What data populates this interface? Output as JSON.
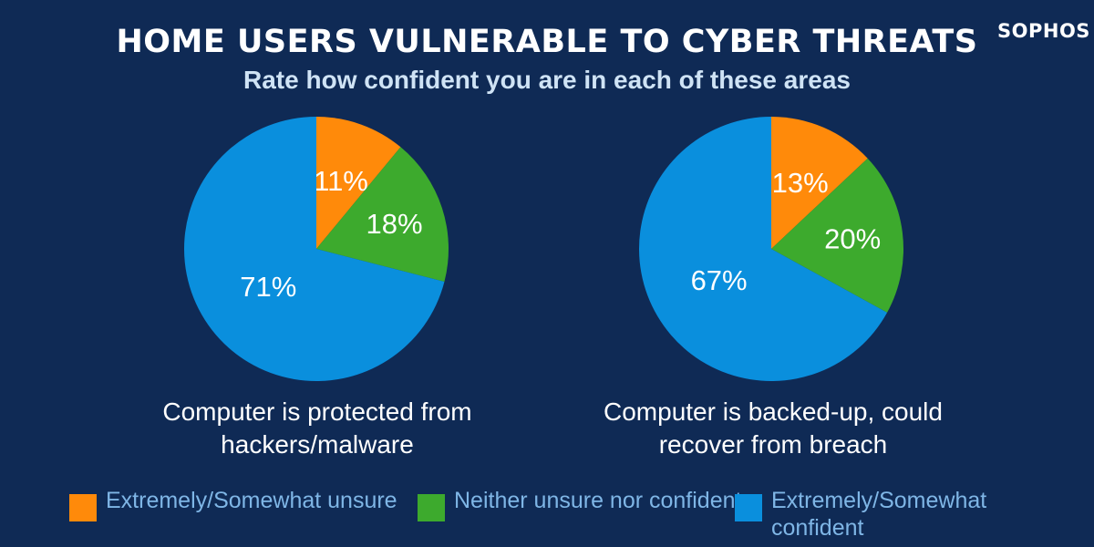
{
  "title": "HOME USERS VULNERABLE TO CYBER THREATS",
  "subtitle": "Rate how confident you are in each of these areas",
  "logo": "SOPHOS",
  "colors": {
    "unsure": "#ff8a0a",
    "neither": "#3daa2d",
    "confident": "#0a8fdd",
    "background": "#0f2a55"
  },
  "legend": [
    {
      "label": "Extremely/Somewhat unsure",
      "color": "#ff8a0a"
    },
    {
      "label": "Neither unsure nor confident",
      "color": "#3daa2d"
    },
    {
      "label": "Extremely/Somewhat confident",
      "color": "#0a8fdd"
    }
  ],
  "chart_data": [
    {
      "type": "pie",
      "caption": "Computer is protected from hackers/malware",
      "slices": [
        {
          "label": "Extremely/Somewhat unsure",
          "value": 11,
          "display": "11%"
        },
        {
          "label": "Neither unsure nor confident",
          "value": 18,
          "display": "18%"
        },
        {
          "label": "Extremely/Somewhat confident",
          "value": 71,
          "display": "71%"
        }
      ]
    },
    {
      "type": "pie",
      "caption": "Computer is backed-up, could recover from breach",
      "slices": [
        {
          "label": "Extremely/Somewhat unsure",
          "value": 13,
          "display": "13%"
        },
        {
          "label": "Neither unsure nor confident",
          "value": 20,
          "display": "20%"
        },
        {
          "label": "Extremely/Somewhat confident",
          "value": 67,
          "display": "67%"
        }
      ]
    }
  ]
}
